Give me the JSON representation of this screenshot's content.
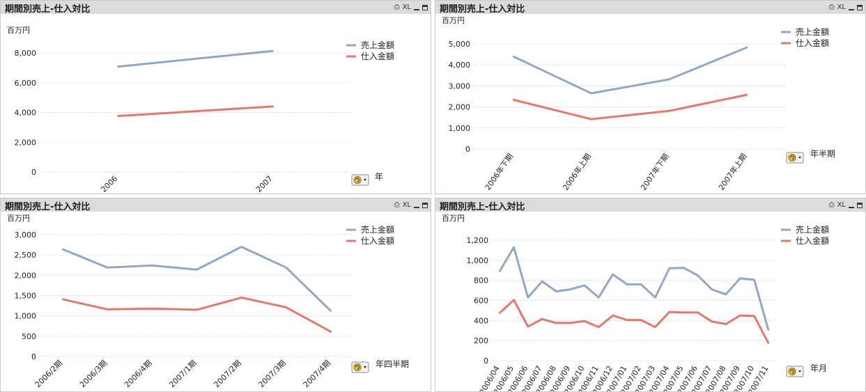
{
  "panels": [
    {
      "title": "期間別売上-仕入対比",
      "controls": {
        "print": "⎙",
        "xl": "XL"
      },
      "unit": "百万円",
      "dimension": "年",
      "chart_data": {
        "type": "line",
        "categories": [
          "2006",
          "2007"
        ],
        "series": [
          {
            "name": "売上金額",
            "color": "#8fa8c4",
            "values": [
              7080,
              8130
            ]
          },
          {
            "name": "仕入金額",
            "color": "#e8766a",
            "values": [
              3760,
              4400
            ]
          }
        ],
        "y_ticks": [
          "0",
          "2,000",
          "4,000",
          "6,000",
          "8,000"
        ],
        "ylim": [
          0,
          8000
        ],
        "grid": true,
        "legend": "top-right"
      }
    },
    {
      "title": "期間別売上-仕入対比",
      "controls": {
        "print": "⎙",
        "xl": "XL"
      },
      "unit": "百万円",
      "dimension": "年半期",
      "chart_data": {
        "type": "line",
        "categories": [
          "2006年下期",
          "2006年上期",
          "2007年下期",
          "2007年上期"
        ],
        "series": [
          {
            "name": "売上金額",
            "color": "#8fa8c4",
            "values": [
              4400,
              2650,
              3310,
              4830
            ]
          },
          {
            "name": "仕入金額",
            "color": "#e8766a",
            "values": [
              2340,
              1420,
              1810,
              2580
            ]
          }
        ],
        "y_ticks": [
          "0",
          "1,000",
          "2,000",
          "3,000",
          "4,000",
          "5,000"
        ],
        "ylim": [
          0,
          5000
        ],
        "grid": true,
        "legend": "top-right"
      }
    },
    {
      "title": "期間別売上-仕入対比",
      "controls": {
        "print": "⎙",
        "xl": "XL"
      },
      "unit": "百万円",
      "dimension": "年四半期",
      "chart_data": {
        "type": "line",
        "categories": [
          "2006/2期",
          "2006/3期",
          "2006/4期",
          "2007/1期",
          "2007/2期",
          "2007/3期",
          "2007/4期"
        ],
        "series": [
          {
            "name": "売上金額",
            "color": "#8fa8c4",
            "values": [
              2640,
              2190,
              2240,
              2140,
              2700,
              2190,
              1120
            ]
          },
          {
            "name": "仕入金額",
            "color": "#e8766a",
            "values": [
              1410,
              1160,
              1180,
              1150,
              1450,
              1210,
              610
            ]
          }
        ],
        "y_ticks": [
          "0",
          "500",
          "1,000",
          "1,500",
          "2,000",
          "2,500",
          "3,000"
        ],
        "ylim": [
          0,
          3000
        ],
        "grid": true,
        "legend": "top-right"
      }
    },
    {
      "title": "期間別売上-仕入対比",
      "controls": {
        "print": "⎙",
        "xl": "XL"
      },
      "unit": "百万円",
      "dimension": "年月",
      "chart_data": {
        "type": "line",
        "categories": [
          "2006/04",
          "2006/05",
          "2006/06",
          "2006/07",
          "2006/08",
          "2006/09",
          "2006/10",
          "2006/11",
          "2006/12",
          "2007/01",
          "2007/02",
          "2007/03",
          "2007/04",
          "2007/05",
          "2007/06",
          "2007/07",
          "2007/08",
          "2007/09",
          "2007/10",
          "2007/11"
        ],
        "series": [
          {
            "name": "売上金額",
            "color": "#8fa8c4",
            "values": [
              890,
              1130,
              630,
              790,
              690,
              710,
              750,
              630,
              860,
              760,
              760,
              630,
              920,
              925,
              850,
              710,
              660,
              820,
              805,
              305
            ]
          },
          {
            "name": "仕入金額",
            "color": "#e8766a",
            "values": [
              475,
              605,
              340,
              415,
              375,
              375,
              395,
              335,
              450,
              405,
              405,
              335,
              485,
              480,
              480,
              390,
              365,
              450,
              445,
              175
            ]
          }
        ],
        "y_ticks": [
          "0",
          "200",
          "400",
          "600",
          "800",
          "1,000",
          "1,200"
        ],
        "ylim": [
          0,
          1200
        ],
        "grid": true,
        "legend": "top-right"
      }
    }
  ]
}
